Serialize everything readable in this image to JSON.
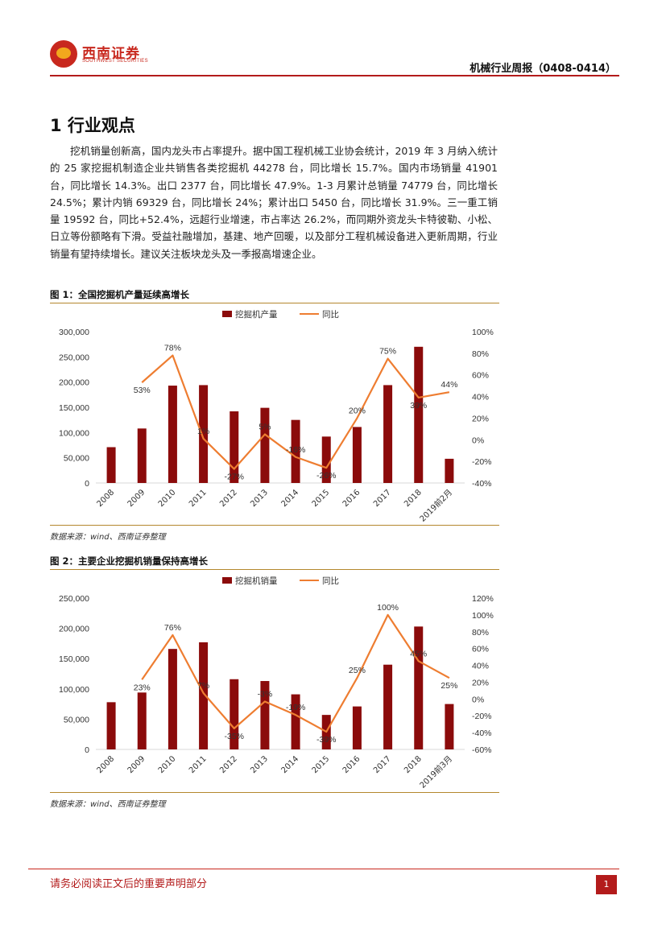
{
  "brand": {
    "name_cn": "西南证券",
    "name_en": "SOUTHWEST SECURITIES"
  },
  "header": {
    "title": "机械行业周报（0408-0414）"
  },
  "section": {
    "title": "1 行业观点"
  },
  "body_text": "挖机销量创新高，国内龙头市占率提升。据中国工程机械工业协会统计，2019 年 3 月纳入统计的 25 家挖掘机制造企业共销售各类挖掘机 44278 台，同比增长 15.7%。国内市场销量 41901 台，同比增长 14.3%。出口 2377 台，同比增长 47.9%。1-3 月累计总销量 74779 台，同比增长 24.5%；累计内销 69329 台，同比增长 24%；累计出口 5450 台，同比增长 31.9%。三一重工销量 19592 台，同比+52.4%，远超行业增速，市占率达 26.2%，而同期外资龙头卡特彼勒、小松、日立等份额略有下滑。受益社融增加，基建、地产回暖，以及部分工程机械设备进入更新周期，行业销量有望持续增长。建议关注板块龙头及一季报高增速企业。",
  "figures": [
    {
      "title": "图 1：全国挖掘机产量延续高增长",
      "source": "数据来源：wind、西南证券整理"
    },
    {
      "title": "图 2：主要企业挖掘机销量保持高增长",
      "source": "数据来源：wind、西南证券整理"
    }
  ],
  "chart_data": [
    {
      "type": "bar",
      "categories": [
        "2008",
        "2009",
        "2010",
        "2011",
        "2012",
        "2013",
        "2014",
        "2015",
        "2016",
        "2017",
        "2018",
        "2019前2月"
      ],
      "series": [
        {
          "name": "挖掘机产量",
          "axis": "left",
          "color": "#8b0b0b",
          "values": [
            71000,
            108000,
            193000,
            194000,
            142000,
            149000,
            125000,
            92000,
            111000,
            194000,
            270000,
            48000
          ]
        },
        {
          "name": "同比",
          "axis": "right",
          "type": "line",
          "color": "#ee7d31",
          "values": [
            null,
            53,
            78,
            1,
            -27,
            5,
            -16,
            -26,
            20,
            75,
            39,
            44
          ],
          "labels": [
            "",
            "53%",
            "78%",
            "1%",
            "-27%",
            "5%",
            "-16%",
            "-26%",
            "20%",
            "75%",
            "39%",
            "44%"
          ]
        }
      ],
      "left_ticks": [
        "0",
        "50,000",
        "100,000",
        "150,000",
        "200,000",
        "250,000",
        "300,000"
      ],
      "left_ylim": [
        0,
        300000
      ],
      "right_ticks": [
        "-40%",
        "-20%",
        "0%",
        "20%",
        "40%",
        "60%",
        "80%",
        "100%"
      ],
      "right_ylim": [
        -40,
        100
      ],
      "legend": "top-center",
      "grid": false
    },
    {
      "type": "bar",
      "categories": [
        "2008",
        "2009",
        "2010",
        "2011",
        "2012",
        "2013",
        "2014",
        "2015",
        "2016",
        "2017",
        "2018",
        "2019前3月"
      ],
      "series": [
        {
          "name": "挖掘机销量",
          "axis": "left",
          "color": "#8b0b0b",
          "values": [
            78000,
            94000,
            166000,
            177000,
            116000,
            113000,
            91000,
            57000,
            71000,
            140000,
            203000,
            75000
          ]
        },
        {
          "name": "同比",
          "axis": "right",
          "type": "line",
          "color": "#ee7d31",
          "values": [
            null,
            23,
            76,
            7,
            -35,
            -3,
            -19,
            -39,
            25,
            100,
            45,
            25
          ],
          "labels": [
            "",
            "23%",
            "76%",
            "7%",
            "-35%",
            "-3%",
            "-19%",
            "-39%",
            "25%",
            "100%",
            "45%",
            "25%"
          ]
        }
      ],
      "left_ticks": [
        "0",
        "50,000",
        "100,000",
        "150,000",
        "200,000",
        "250,000"
      ],
      "left_ylim": [
        0,
        250000
      ],
      "right_ticks": [
        "-60%",
        "-40%",
        "-20%",
        "0%",
        "20%",
        "40%",
        "60%",
        "80%",
        "100%",
        "120%"
      ],
      "right_ylim": [
        -60,
        120
      ],
      "legend": "top-center",
      "grid": false
    }
  ],
  "footer": {
    "text": "请务必阅读正文后的重要声明部分",
    "page": "1"
  }
}
